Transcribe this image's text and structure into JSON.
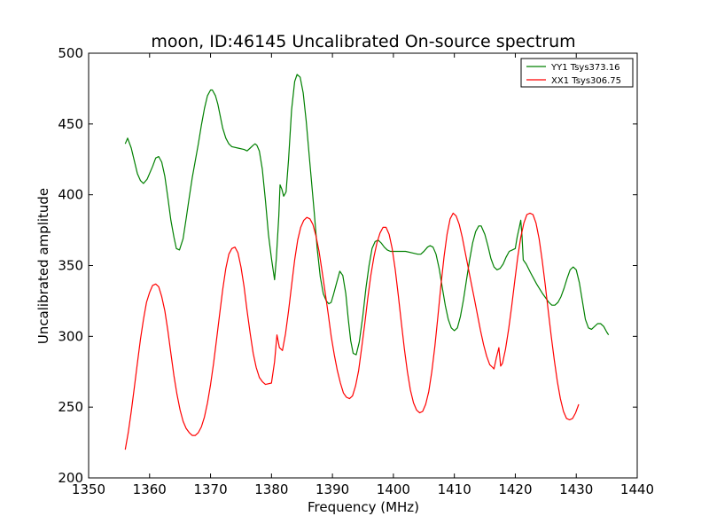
{
  "chart_data": {
    "type": "line",
    "title": "moon, ID:46145 Uncalibrated On-source spectrum",
    "xlabel": "Frequency (MHz)",
    "ylabel": "Uncalibrated amplitude",
    "xlim": [
      1350,
      1440
    ],
    "ylim": [
      200,
      500
    ],
    "xticks": [
      1350,
      1360,
      1370,
      1380,
      1390,
      1400,
      1410,
      1420,
      1430,
      1440
    ],
    "yticks": [
      200,
      250,
      300,
      350,
      400,
      450,
      500
    ],
    "legend_position": "top-right",
    "grid": false,
    "series": [
      {
        "name": "YY1 Tsys373.16",
        "color": "#008000",
        "points": [
          [
            1356.0,
            436
          ],
          [
            1356.4,
            440
          ],
          [
            1357.0,
            433
          ],
          [
            1358.0,
            415
          ],
          [
            1358.5,
            410
          ],
          [
            1359.0,
            408
          ],
          [
            1359.6,
            411
          ],
          [
            1360.5,
            420
          ],
          [
            1361.0,
            426
          ],
          [
            1361.5,
            427
          ],
          [
            1362.0,
            423
          ],
          [
            1362.5,
            413
          ],
          [
            1363.0,
            398
          ],
          [
            1363.5,
            382
          ],
          [
            1364.0,
            370
          ],
          [
            1364.4,
            362
          ],
          [
            1364.9,
            361
          ],
          [
            1365.5,
            369
          ],
          [
            1366.0,
            383
          ],
          [
            1366.5,
            398
          ],
          [
            1367.0,
            412
          ],
          [
            1368.0,
            436
          ],
          [
            1368.5,
            449
          ],
          [
            1369.0,
            461
          ],
          [
            1369.5,
            470
          ],
          [
            1370.0,
            474
          ],
          [
            1370.3,
            474
          ],
          [
            1370.8,
            470
          ],
          [
            1371.2,
            464
          ],
          [
            1372.0,
            447
          ],
          [
            1372.5,
            440
          ],
          [
            1373.0,
            436
          ],
          [
            1373.5,
            434
          ],
          [
            1374.5,
            433
          ],
          [
            1375.5,
            432
          ],
          [
            1376.0,
            431
          ],
          [
            1376.5,
            433
          ],
          [
            1377.0,
            435
          ],
          [
            1377.3,
            436
          ],
          [
            1377.6,
            435
          ],
          [
            1378.0,
            431
          ],
          [
            1378.5,
            418
          ],
          [
            1379.0,
            396
          ],
          [
            1379.5,
            372
          ],
          [
            1380.0,
            355
          ],
          [
            1380.3,
            346
          ],
          [
            1380.5,
            340
          ],
          [
            1380.8,
            355
          ],
          [
            1381.2,
            385
          ],
          [
            1381.4,
            407
          ],
          [
            1381.7,
            404
          ],
          [
            1382.0,
            399
          ],
          [
            1382.4,
            402
          ],
          [
            1382.8,
            425
          ],
          [
            1383.3,
            460
          ],
          [
            1383.8,
            480
          ],
          [
            1384.2,
            485
          ],
          [
            1384.7,
            483
          ],
          [
            1385.2,
            472
          ],
          [
            1385.7,
            452
          ],
          [
            1386.3,
            422
          ],
          [
            1387.0,
            388
          ],
          [
            1387.5,
            362
          ],
          [
            1388.0,
            342
          ],
          [
            1388.5,
            330
          ],
          [
            1389.0,
            325
          ],
          [
            1389.4,
            323
          ],
          [
            1389.8,
            324
          ],
          [
            1390.2,
            330
          ],
          [
            1390.7,
            338
          ],
          [
            1391.2,
            346
          ],
          [
            1391.7,
            343
          ],
          [
            1392.2,
            330
          ],
          [
            1392.6,
            312
          ],
          [
            1393.0,
            297
          ],
          [
            1393.4,
            288
          ],
          [
            1393.9,
            287
          ],
          [
            1394.4,
            296
          ],
          [
            1395.0,
            315
          ],
          [
            1395.5,
            334
          ],
          [
            1396.0,
            350
          ],
          [
            1396.5,
            362
          ],
          [
            1397.0,
            367
          ],
          [
            1397.5,
            368
          ],
          [
            1398.0,
            366
          ],
          [
            1398.5,
            363
          ],
          [
            1399.0,
            361
          ],
          [
            1399.5,
            360
          ],
          [
            1400.0,
            360
          ],
          [
            1401.0,
            360
          ],
          [
            1402.0,
            360
          ],
          [
            1403.0,
            359
          ],
          [
            1404.0,
            358
          ],
          [
            1404.5,
            358
          ],
          [
            1405.0,
            360
          ],
          [
            1405.6,
            363
          ],
          [
            1406.0,
            364
          ],
          [
            1406.5,
            363
          ],
          [
            1407.0,
            358
          ],
          [
            1407.5,
            348
          ],
          [
            1408.0,
            335
          ],
          [
            1408.5,
            322
          ],
          [
            1409.0,
            312
          ],
          [
            1409.5,
            306
          ],
          [
            1410.0,
            304
          ],
          [
            1410.5,
            306
          ],
          [
            1411.0,
            314
          ],
          [
            1411.5,
            326
          ],
          [
            1412.0,
            340
          ],
          [
            1412.5,
            354
          ],
          [
            1413.0,
            366
          ],
          [
            1413.5,
            374
          ],
          [
            1414.0,
            378
          ],
          [
            1414.4,
            378
          ],
          [
            1415.0,
            372
          ],
          [
            1415.5,
            364
          ],
          [
            1416.0,
            355
          ],
          [
            1416.5,
            349
          ],
          [
            1417.0,
            347
          ],
          [
            1417.5,
            348
          ],
          [
            1418.0,
            351
          ],
          [
            1418.5,
            356
          ],
          [
            1419.0,
            360
          ],
          [
            1419.5,
            361
          ],
          [
            1420.0,
            362
          ],
          [
            1420.3,
            370
          ],
          [
            1420.7,
            378
          ],
          [
            1420.9,
            382
          ],
          [
            1421.1,
            371
          ],
          [
            1421.3,
            354
          ],
          [
            1421.8,
            351
          ],
          [
            1422.5,
            345
          ],
          [
            1423.5,
            337
          ],
          [
            1424.5,
            330
          ],
          [
            1425.5,
            324
          ],
          [
            1426.0,
            322
          ],
          [
            1426.5,
            322
          ],
          [
            1427.0,
            324
          ],
          [
            1427.5,
            328
          ],
          [
            1428.0,
            334
          ],
          [
            1428.5,
            341
          ],
          [
            1429.0,
            347
          ],
          [
            1429.5,
            349
          ],
          [
            1430.0,
            347
          ],
          [
            1430.5,
            338
          ],
          [
            1431.0,
            325
          ],
          [
            1431.5,
            312
          ],
          [
            1432.0,
            306
          ],
          [
            1432.5,
            305
          ],
          [
            1433.0,
            307
          ],
          [
            1433.5,
            309
          ],
          [
            1434.0,
            309
          ],
          [
            1434.5,
            307
          ],
          [
            1435.0,
            303
          ],
          [
            1435.3,
            301
          ]
        ]
      },
      {
        "name": "XX1 Tsys306.75",
        "color": "#ff0000",
        "points": [
          [
            1356.0,
            220
          ],
          [
            1356.5,
            232
          ],
          [
            1357.0,
            247
          ],
          [
            1357.5,
            264
          ],
          [
            1358.0,
            281
          ],
          [
            1358.5,
            298
          ],
          [
            1359.0,
            312
          ],
          [
            1359.5,
            324
          ],
          [
            1360.0,
            331
          ],
          [
            1360.5,
            336
          ],
          [
            1361.0,
            337
          ],
          [
            1361.5,
            335
          ],
          [
            1362.0,
            328
          ],
          [
            1362.5,
            318
          ],
          [
            1363.0,
            304
          ],
          [
            1363.5,
            288
          ],
          [
            1364.0,
            272
          ],
          [
            1364.5,
            259
          ],
          [
            1365.0,
            248
          ],
          [
            1365.5,
            240
          ],
          [
            1366.0,
            235
          ],
          [
            1366.5,
            232
          ],
          [
            1367.0,
            230
          ],
          [
            1367.5,
            230
          ],
          [
            1368.0,
            232
          ],
          [
            1368.5,
            236
          ],
          [
            1369.0,
            243
          ],
          [
            1369.5,
            253
          ],
          [
            1370.0,
            266
          ],
          [
            1370.5,
            281
          ],
          [
            1371.0,
            298
          ],
          [
            1371.5,
            316
          ],
          [
            1372.0,
            333
          ],
          [
            1372.5,
            348
          ],
          [
            1373.0,
            358
          ],
          [
            1373.5,
            362
          ],
          [
            1374.0,
            363
          ],
          [
            1374.5,
            359
          ],
          [
            1375.0,
            349
          ],
          [
            1375.5,
            335
          ],
          [
            1376.0,
            318
          ],
          [
            1376.5,
            302
          ],
          [
            1377.0,
            288
          ],
          [
            1377.5,
            278
          ],
          [
            1378.0,
            271
          ],
          [
            1378.5,
            268
          ],
          [
            1379.0,
            266
          ],
          [
            1380.0,
            267
          ],
          [
            1380.5,
            282
          ],
          [
            1380.9,
            301
          ],
          [
            1381.3,
            292
          ],
          [
            1381.8,
            290
          ],
          [
            1382.3,
            302
          ],
          [
            1382.8,
            318
          ],
          [
            1383.3,
            336
          ],
          [
            1383.8,
            354
          ],
          [
            1384.3,
            368
          ],
          [
            1384.8,
            377
          ],
          [
            1385.3,
            382
          ],
          [
            1385.8,
            384
          ],
          [
            1386.3,
            383
          ],
          [
            1386.8,
            379
          ],
          [
            1387.3,
            371
          ],
          [
            1387.8,
            360
          ],
          [
            1388.3,
            346
          ],
          [
            1388.8,
            331
          ],
          [
            1389.3,
            316
          ],
          [
            1389.8,
            300
          ],
          [
            1390.3,
            287
          ],
          [
            1390.8,
            276
          ],
          [
            1391.3,
            267
          ],
          [
            1391.8,
            260
          ],
          [
            1392.3,
            257
          ],
          [
            1392.8,
            256
          ],
          [
            1393.3,
            258
          ],
          [
            1393.8,
            265
          ],
          [
            1394.3,
            276
          ],
          [
            1394.8,
            292
          ],
          [
            1395.3,
            309
          ],
          [
            1395.8,
            327
          ],
          [
            1396.3,
            343
          ],
          [
            1396.8,
            356
          ],
          [
            1397.3,
            366
          ],
          [
            1397.8,
            373
          ],
          [
            1398.3,
            377
          ],
          [
            1398.8,
            377
          ],
          [
            1399.3,
            372
          ],
          [
            1399.8,
            362
          ],
          [
            1400.3,
            347
          ],
          [
            1400.8,
            329
          ],
          [
            1401.3,
            310
          ],
          [
            1401.8,
            291
          ],
          [
            1402.3,
            275
          ],
          [
            1402.8,
            262
          ],
          [
            1403.3,
            253
          ],
          [
            1403.8,
            248
          ],
          [
            1404.3,
            246
          ],
          [
            1404.8,
            247
          ],
          [
            1405.3,
            252
          ],
          [
            1405.8,
            261
          ],
          [
            1406.3,
            275
          ],
          [
            1406.8,
            293
          ],
          [
            1407.3,
            314
          ],
          [
            1407.8,
            336
          ],
          [
            1408.3,
            356
          ],
          [
            1408.8,
            372
          ],
          [
            1409.3,
            383
          ],
          [
            1409.8,
            387
          ],
          [
            1410.3,
            385
          ],
          [
            1410.8,
            379
          ],
          [
            1411.3,
            370
          ],
          [
            1411.8,
            359
          ],
          [
            1412.3,
            348
          ],
          [
            1412.8,
            337
          ],
          [
            1413.3,
            326
          ],
          [
            1413.8,
            315
          ],
          [
            1414.3,
            304
          ],
          [
            1414.8,
            294
          ],
          [
            1415.3,
            286
          ],
          [
            1415.8,
            280
          ],
          [
            1416.3,
            278
          ],
          [
            1416.5,
            277
          ],
          [
            1416.9,
            285
          ],
          [
            1417.3,
            292
          ],
          [
            1417.6,
            279
          ],
          [
            1417.9,
            281
          ],
          [
            1418.4,
            291
          ],
          [
            1418.9,
            305
          ],
          [
            1419.4,
            321
          ],
          [
            1419.9,
            339
          ],
          [
            1420.4,
            356
          ],
          [
            1420.9,
            370
          ],
          [
            1421.4,
            380
          ],
          [
            1421.9,
            386
          ],
          [
            1422.4,
            387
          ],
          [
            1422.9,
            386
          ],
          [
            1423.4,
            380
          ],
          [
            1423.9,
            369
          ],
          [
            1424.4,
            354
          ],
          [
            1424.9,
            337
          ],
          [
            1425.4,
            318
          ],
          [
            1425.9,
            300
          ],
          [
            1426.4,
            283
          ],
          [
            1426.9,
            268
          ],
          [
            1427.4,
            256
          ],
          [
            1427.9,
            247
          ],
          [
            1428.4,
            242
          ],
          [
            1428.9,
            241
          ],
          [
            1429.4,
            242
          ],
          [
            1429.9,
            246
          ],
          [
            1430.4,
            252
          ]
        ]
      }
    ]
  }
}
